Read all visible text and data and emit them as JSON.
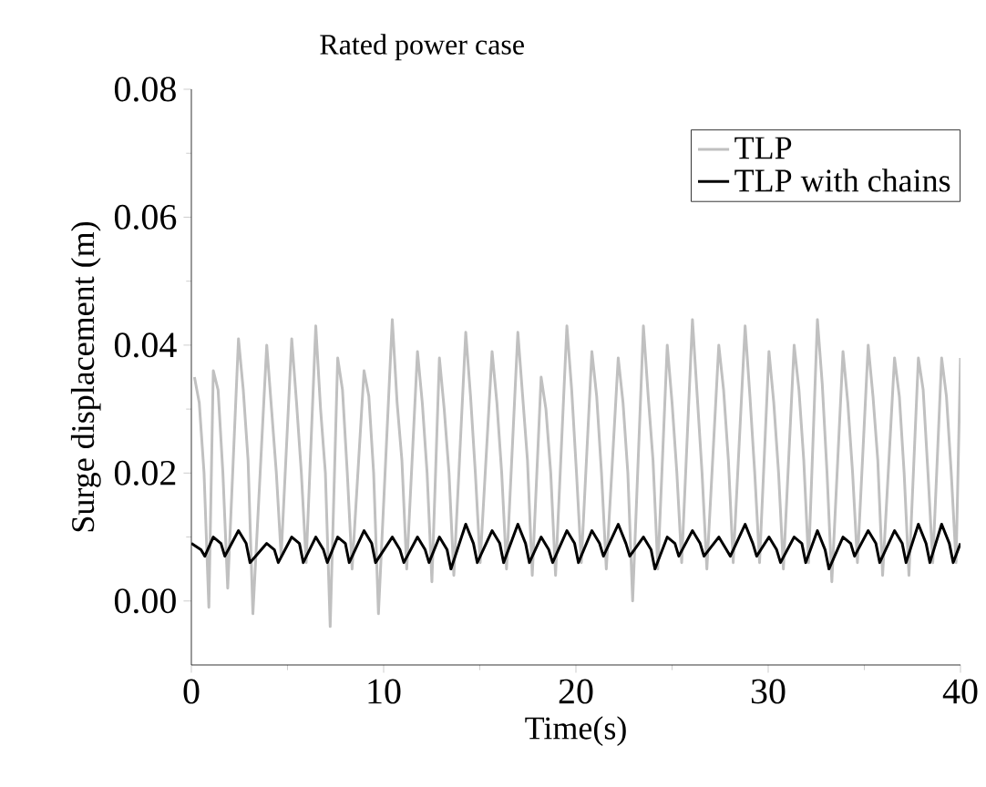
{
  "chart_data": {
    "type": "line",
    "title": "Rated power case",
    "xlabel": "Time(s)",
    "ylabel": "Surge displacement (m)",
    "xlim": [
      0,
      40
    ],
    "ylim": [
      -0.01,
      0.08
    ],
    "xticks": [
      0,
      10,
      20,
      30,
      40
    ],
    "yticks": [
      {
        "value": 0,
        "label": "0.00"
      },
      {
        "value": 0.02,
        "label": "0.02"
      },
      {
        "value": 0.04,
        "label": "0.04"
      },
      {
        "value": 0.06,
        "label": "0.06"
      },
      {
        "value": 0.08,
        "label": "0.08"
      }
    ],
    "grid": false,
    "legend": "top right",
    "marker": "none",
    "line_style": "solid",
    "series": [
      {
        "name": "TLP",
        "color": "#c0c0c0",
        "x": [
          0.16,
          0.41,
          0.66,
          0.91,
          1.14,
          1.39,
          1.64,
          1.89,
          2.45,
          2.7,
          2.95,
          3.2,
          3.92,
          4.17,
          4.42,
          4.67,
          5.22,
          5.47,
          5.72,
          5.97,
          6.47,
          6.72,
          6.97,
          7.22,
          7.61,
          7.86,
          8.11,
          8.36,
          8.98,
          9.23,
          9.48,
          9.73,
          10.45,
          10.7,
          10.95,
          11.2,
          11.76,
          12.01,
          12.26,
          12.51,
          12.9,
          13.15,
          13.4,
          13.65,
          14.27,
          14.52,
          14.77,
          15.02,
          15.64,
          15.89,
          16.14,
          16.39,
          16.98,
          17.23,
          17.48,
          17.73,
          18.19,
          18.44,
          18.69,
          18.94,
          19.53,
          19.78,
          20.03,
          20.28,
          20.83,
          21.08,
          21.33,
          21.58,
          22.2,
          22.45,
          22.7,
          22.95,
          23.51,
          23.76,
          24.01,
          24.26,
          24.75,
          25.0,
          25.25,
          25.5,
          26.06,
          26.31,
          26.56,
          26.81,
          27.43,
          27.68,
          27.93,
          28.18,
          28.8,
          29.05,
          29.3,
          29.55,
          30.04,
          30.29,
          30.54,
          30.79,
          31.35,
          31.6,
          31.85,
          32.1,
          32.56,
          32.81,
          33.06,
          33.31,
          33.89,
          34.14,
          34.39,
          34.64,
          35.2,
          35.45,
          35.7,
          35.95,
          36.57,
          36.82,
          37.07,
          37.32,
          37.81,
          38.06,
          38.31,
          38.56,
          39.02,
          39.27,
          39.52,
          39.77,
          40
        ],
        "values": [
          0.035,
          0.031,
          0.02,
          -0.001,
          0.036,
          0.033,
          0.02,
          0.002,
          0.041,
          0.033,
          0.022,
          -0.002,
          0.04,
          0.03,
          0.02,
          0.007,
          0.041,
          0.031,
          0.02,
          0.006,
          0.043,
          0.03,
          0.02,
          -0.004,
          0.038,
          0.033,
          0.02,
          0.005,
          0.036,
          0.032,
          0.02,
          -0.002,
          0.044,
          0.031,
          0.022,
          0.005,
          0.039,
          0.031,
          0.02,
          0.003,
          0.038,
          0.03,
          0.02,
          0.004,
          0.042,
          0.032,
          0.02,
          0.006,
          0.039,
          0.031,
          0.02,
          0.005,
          0.042,
          0.032,
          0.022,
          0.004,
          0.035,
          0.03,
          0.02,
          0.004,
          0.043,
          0.033,
          0.02,
          0.006,
          0.039,
          0.032,
          0.02,
          0.005,
          0.038,
          0.031,
          0.02,
          0.0,
          0.043,
          0.032,
          0.022,
          0.005,
          0.04,
          0.031,
          0.02,
          0.006,
          0.044,
          0.032,
          0.02,
          0.005,
          0.04,
          0.033,
          0.022,
          0.006,
          0.043,
          0.032,
          0.02,
          0.006,
          0.039,
          0.031,
          0.02,
          0.005,
          0.04,
          0.033,
          0.022,
          0.006,
          0.044,
          0.034,
          0.02,
          0.003,
          0.039,
          0.031,
          0.02,
          0.006,
          0.04,
          0.032,
          0.022,
          0.004,
          0.038,
          0.032,
          0.02,
          0.004,
          0.038,
          0.033,
          0.02,
          0.006,
          0.038,
          0.032,
          0.02,
          0.006,
          0.038
        ]
      },
      {
        "name": "TLP with chains",
        "color": "#000000",
        "x": [
          0,
          0.5,
          0.7,
          1.14,
          1.54,
          1.74,
          2.45,
          2.85,
          3.05,
          3.92,
          4.32,
          4.52,
          5.22,
          5.62,
          5.82,
          6.47,
          6.87,
          7.07,
          7.61,
          8.01,
          8.21,
          8.98,
          9.38,
          9.58,
          10.45,
          10.85,
          11.05,
          11.76,
          12.16,
          12.36,
          12.9,
          13.3,
          13.5,
          14.27,
          14.67,
          14.87,
          15.64,
          16.04,
          16.24,
          16.98,
          17.38,
          17.58,
          18.19,
          18.59,
          18.79,
          19.53,
          19.93,
          20.13,
          20.83,
          21.23,
          21.43,
          22.2,
          22.6,
          22.8,
          23.51,
          23.91,
          24.11,
          24.75,
          25.15,
          25.35,
          26.06,
          26.46,
          26.66,
          27.43,
          27.83,
          28.03,
          28.8,
          29.2,
          29.4,
          30.04,
          30.44,
          30.64,
          31.35,
          31.75,
          31.95,
          32.56,
          32.96,
          33.16,
          33.89,
          34.29,
          34.49,
          35.2,
          35.6,
          35.8,
          36.57,
          36.97,
          37.17,
          37.81,
          38.21,
          38.41,
          39.02,
          39.42,
          39.62,
          40
        ],
        "values": [
          0.009,
          0.008,
          0.007,
          0.01,
          0.009,
          0.007,
          0.011,
          0.009,
          0.006,
          0.009,
          0.008,
          0.006,
          0.01,
          0.009,
          0.006,
          0.01,
          0.008,
          0.006,
          0.01,
          0.009,
          0.006,
          0.011,
          0.009,
          0.006,
          0.01,
          0.008,
          0.006,
          0.01,
          0.008,
          0.006,
          0.01,
          0.008,
          0.005,
          0.012,
          0.009,
          0.006,
          0.011,
          0.009,
          0.006,
          0.012,
          0.009,
          0.006,
          0.01,
          0.008,
          0.006,
          0.011,
          0.009,
          0.006,
          0.011,
          0.009,
          0.007,
          0.012,
          0.009,
          0.007,
          0.01,
          0.008,
          0.005,
          0.01,
          0.009,
          0.007,
          0.011,
          0.009,
          0.007,
          0.01,
          0.008,
          0.007,
          0.012,
          0.009,
          0.007,
          0.01,
          0.008,
          0.006,
          0.01,
          0.009,
          0.006,
          0.011,
          0.008,
          0.005,
          0.01,
          0.009,
          0.007,
          0.011,
          0.009,
          0.006,
          0.011,
          0.009,
          0.006,
          0.012,
          0.009,
          0.006,
          0.012,
          0.009,
          0.006,
          0.009
        ]
      }
    ]
  }
}
